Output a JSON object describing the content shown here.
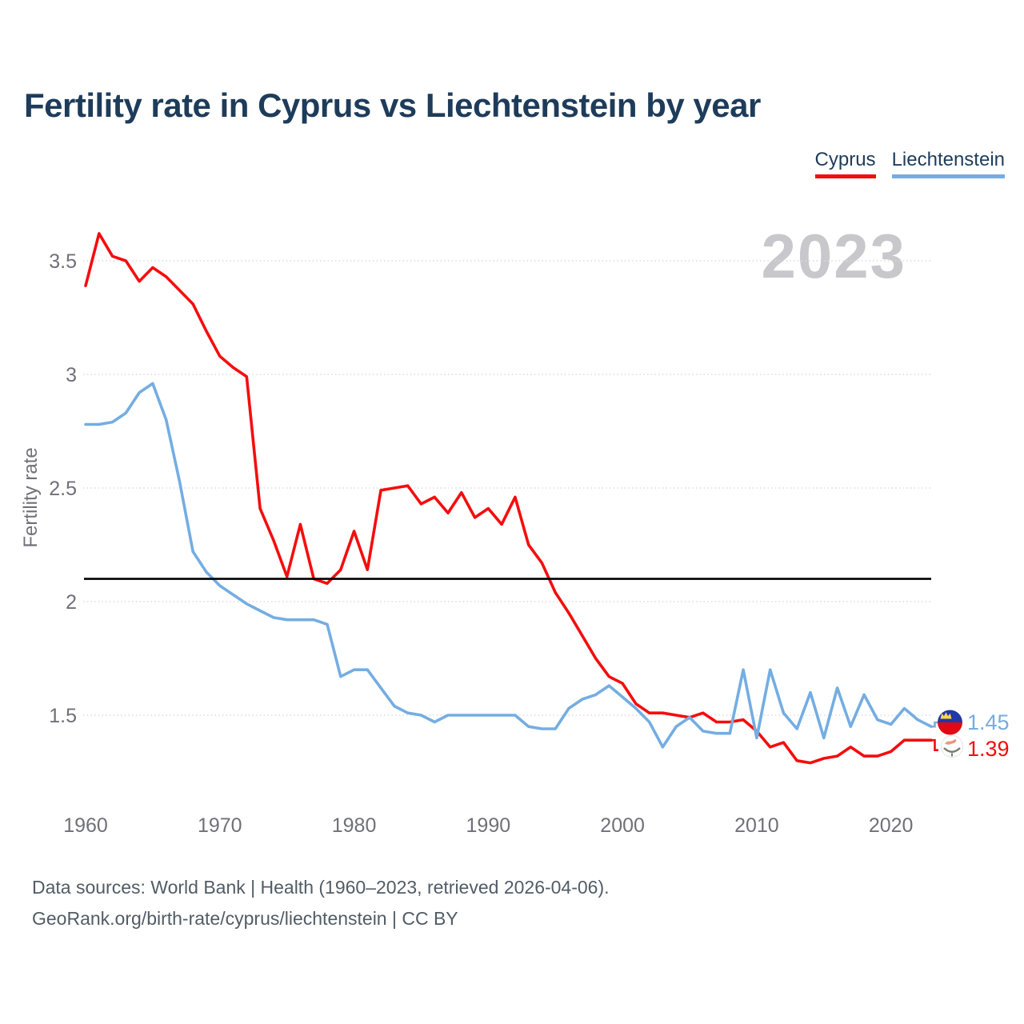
{
  "title": "Fertility rate in Cyprus vs Liechtenstein by year",
  "watermark": "2023",
  "legend": [
    {
      "label": "Cyprus",
      "color": "#f50d0d"
    },
    {
      "label": "Liechtenstein",
      "color": "#74ade2"
    }
  ],
  "end_labels": [
    {
      "series": "Liechtenstein",
      "value": "1.45",
      "color": "#74ade2",
      "flag": "liechtenstein-flag"
    },
    {
      "series": "Cyprus",
      "value": "1.39",
      "color": "#f50d0d",
      "flag": "cyprus-flag"
    }
  ],
  "footer": {
    "line1": "Data sources: World Bank | Health (1960–2023, retrieved 2026-04-06).",
    "line2": "GeoRank.org/birth-rate/cyprus/liechtenstein | CC BY"
  },
  "colors": {
    "cyprus": "#f50d0d",
    "liechtenstein": "#74ade2",
    "title_text": "#1e3c5a",
    "axis_text": "#70707a",
    "watermark": "#c8c8cc",
    "gridline": "#dcdce0",
    "reference_line": "#000000",
    "footer_text": "#515c66"
  },
  "chart_data": {
    "type": "line",
    "title": "Fertility rate in Cyprus vs Liechtenstein by year",
    "xlabel": "",
    "ylabel": "Fertility rate",
    "xlim": [
      1960,
      2023
    ],
    "ylim": [
      1.1,
      3.7
    ],
    "grid": true,
    "legend_position": "top-right",
    "x_ticks": [
      {
        "value": 1960,
        "label": "1960"
      },
      {
        "value": 1970,
        "label": "1970"
      },
      {
        "value": 1980,
        "label": "1980"
      },
      {
        "value": 1990,
        "label": "1990"
      },
      {
        "value": 2000,
        "label": "2000"
      },
      {
        "value": 2010,
        "label": "2010"
      },
      {
        "value": 2020,
        "label": "2020"
      }
    ],
    "y_ticks": [
      {
        "value": 1.5,
        "label": "1.5"
      },
      {
        "value": 2,
        "label": "2"
      },
      {
        "value": 2.5,
        "label": "2.5"
      },
      {
        "value": 3,
        "label": "3"
      },
      {
        "value": 3.5,
        "label": "3.5"
      }
    ],
    "reference_line": {
      "value": 2.1,
      "color": "#000000"
    },
    "x": [
      1960,
      1961,
      1962,
      1963,
      1964,
      1965,
      1966,
      1967,
      1968,
      1969,
      1970,
      1971,
      1972,
      1973,
      1974,
      1975,
      1976,
      1977,
      1978,
      1979,
      1980,
      1981,
      1982,
      1983,
      1984,
      1985,
      1986,
      1987,
      1988,
      1989,
      1990,
      1991,
      1992,
      1993,
      1994,
      1995,
      1996,
      1997,
      1998,
      1999,
      2000,
      2001,
      2002,
      2003,
      2004,
      2005,
      2006,
      2007,
      2008,
      2009,
      2010,
      2011,
      2012,
      2013,
      2014,
      2015,
      2016,
      2017,
      2018,
      2019,
      2020,
      2021,
      2022,
      2023
    ],
    "series": [
      {
        "name": "Cyprus",
        "color": "#f50d0d",
        "end_label": "1.39",
        "values": [
          3.39,
          3.62,
          3.52,
          3.5,
          3.41,
          3.47,
          3.43,
          3.37,
          3.31,
          3.19,
          3.08,
          3.03,
          2.99,
          2.41,
          2.27,
          2.11,
          2.34,
          2.1,
          2.08,
          2.14,
          2.31,
          2.14,
          2.49,
          2.5,
          2.51,
          2.43,
          2.46,
          2.39,
          2.48,
          2.37,
          2.41,
          2.34,
          2.46,
          2.25,
          2.17,
          2.04,
          1.95,
          1.85,
          1.75,
          1.67,
          1.64,
          1.55,
          1.51,
          1.51,
          1.5,
          1.49,
          1.51,
          1.47,
          1.47,
          1.48,
          1.43,
          1.36,
          1.38,
          1.3,
          1.29,
          1.31,
          1.32,
          1.36,
          1.32,
          1.32,
          1.34,
          1.39,
          1.39,
          1.39
        ]
      },
      {
        "name": "Liechtenstein",
        "color": "#74ade2",
        "end_label": "1.45",
        "values": [
          2.78,
          2.78,
          2.79,
          2.83,
          2.92,
          2.96,
          2.8,
          2.53,
          2.22,
          2.13,
          2.07,
          2.03,
          1.99,
          1.96,
          1.93,
          1.92,
          1.92,
          1.92,
          1.9,
          1.67,
          1.7,
          1.7,
          1.62,
          1.54,
          1.51,
          1.5,
          1.47,
          1.5,
          1.5,
          1.5,
          1.5,
          1.5,
          1.5,
          1.45,
          1.44,
          1.44,
          1.53,
          1.57,
          1.59,
          1.63,
          1.58,
          1.53,
          1.47,
          1.36,
          1.45,
          1.49,
          1.43,
          1.42,
          1.42,
          1.7,
          1.4,
          1.7,
          1.51,
          1.44,
          1.6,
          1.4,
          1.62,
          1.45,
          1.59,
          1.48,
          1.46,
          1.53,
          1.48,
          1.45
        ]
      }
    ]
  }
}
